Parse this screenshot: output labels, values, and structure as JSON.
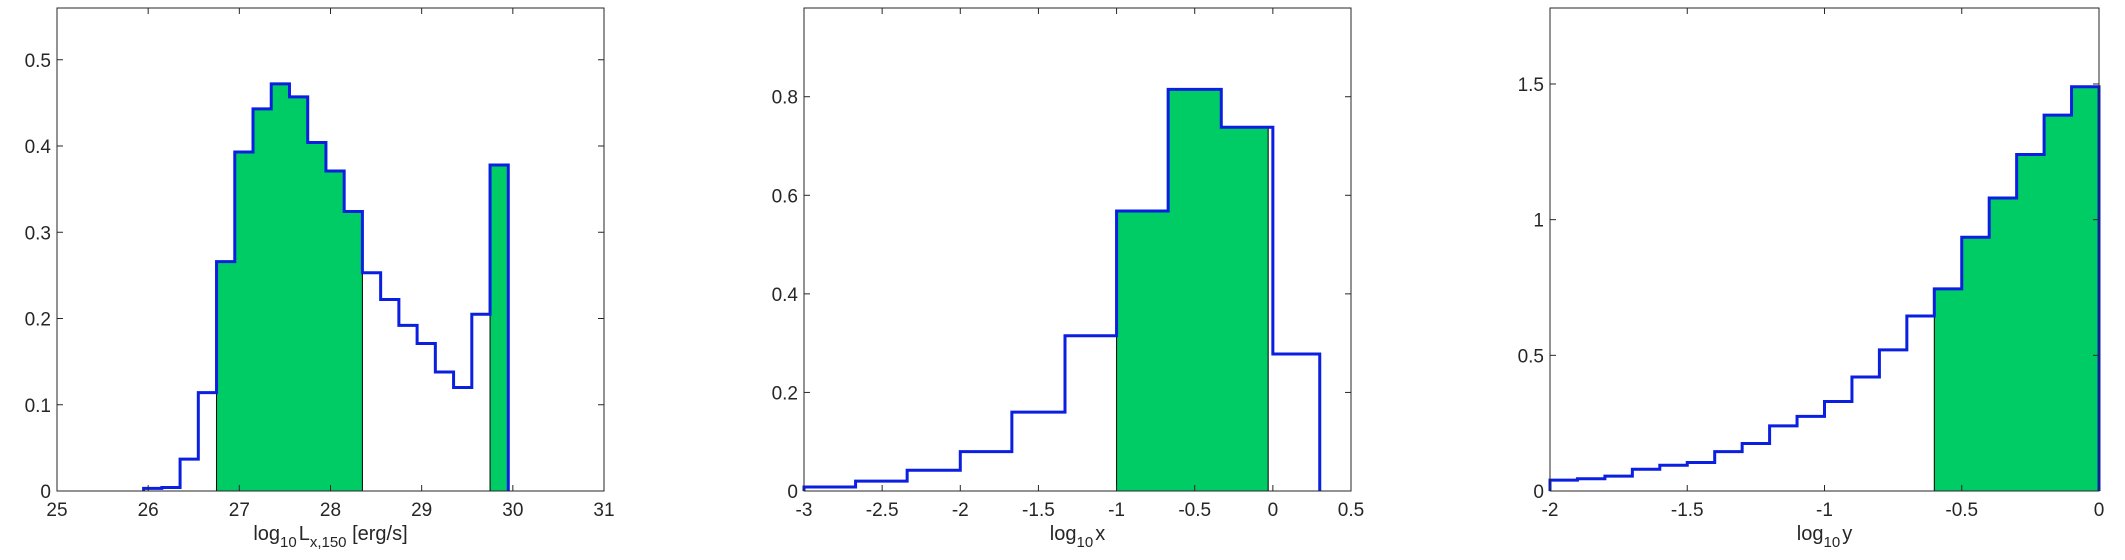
{
  "chart_data": [
    {
      "type": "histogram",
      "title": "",
      "xlabel": {
        "base": "log",
        "sub": "10",
        "main": "L",
        "main_sub": "x,150",
        "unit": " [erg/s]"
      },
      "ylabel": "",
      "xlim": [
        25,
        31
      ],
      "ylim": [
        0,
        0.56
      ],
      "xticks": [
        "25",
        "26",
        "27",
        "28",
        "29",
        "30",
        "31"
      ],
      "yticks": [
        "0",
        "0.1",
        "0.2",
        "0.3",
        "0.4",
        "0.5"
      ],
      "bin_edges": [
        25.95,
        26.15,
        26.35,
        26.55,
        26.75,
        26.95,
        27.15,
        27.35,
        27.55,
        27.75,
        27.95,
        28.15,
        28.35,
        28.55,
        28.75,
        28.95,
        29.15,
        29.35,
        29.55,
        29.75,
        29.95
      ],
      "values": [
        0.003,
        0.004,
        0.037,
        0.114,
        0.266,
        0.393,
        0.443,
        0.472,
        0.457,
        0.404,
        0.371,
        0.324,
        0.253,
        0.222,
        0.192,
        0.171,
        0.138,
        0.12,
        0.205,
        0.378
      ],
      "filled_ranges": [
        [
          26.75,
          28.35
        ],
        [
          29.75,
          29.95
        ]
      ],
      "colors": {
        "outline": "#0a1fe0",
        "fill": "#00cc66"
      }
    },
    {
      "type": "histogram",
      "title": "",
      "xlabel": {
        "base": "log",
        "sub": "10",
        "main": "x",
        "main_sub": "",
        "unit": ""
      },
      "ylabel": "",
      "xlim": [
        -3,
        0.5
      ],
      "ylim": [
        0,
        0.98
      ],
      "xticks": [
        "-3",
        "-2.5",
        "-2",
        "-1.5",
        "-1",
        "-0.5",
        "0",
        "0.5"
      ],
      "yticks": [
        "0",
        "0.2",
        "0.4",
        "0.6",
        "0.8"
      ],
      "bin_edges": [
        -3.0,
        -2.67,
        -2.34,
        -2.0,
        -1.67,
        -1.33,
        -1.0,
        -0.67,
        -0.33,
        0.0,
        0.3
      ],
      "values": [
        0.008,
        0.02,
        0.042,
        0.08,
        0.16,
        0.315,
        0.568,
        0.815,
        0.738,
        0.278
      ],
      "filled_ranges": [
        [
          -1.0,
          -0.03
        ]
      ],
      "colors": {
        "outline": "#0a1fe0",
        "fill": "#00cc66"
      }
    },
    {
      "type": "histogram",
      "title": "",
      "xlabel": {
        "base": "log",
        "sub": "10",
        "main": "y",
        "main_sub": "",
        "unit": ""
      },
      "ylabel": "",
      "xlim": [
        -2,
        0
      ],
      "ylim": [
        0,
        1.78
      ],
      "xticks": [
        "-2",
        "-1.5",
        "-1",
        "-0.5",
        "0"
      ],
      "yticks": [
        "0",
        "0.5",
        "1",
        "1.5"
      ],
      "bin_edges": [
        -2.0,
        -1.9,
        -1.8,
        -1.7,
        -1.6,
        -1.5,
        -1.4,
        -1.3,
        -1.2,
        -1.1,
        -1.0,
        -0.9,
        -0.8,
        -0.7,
        -0.6,
        -0.5,
        -0.4,
        -0.3,
        -0.2,
        -0.1,
        0.0
      ],
      "values": [
        0.04,
        0.045,
        0.055,
        0.08,
        0.095,
        0.105,
        0.145,
        0.175,
        0.24,
        0.275,
        0.33,
        0.42,
        0.52,
        0.645,
        0.745,
        0.935,
        1.08,
        1.24,
        1.385,
        1.49
      ],
      "filled_ranges": [
        [
          -0.6,
          0.0
        ]
      ],
      "colors": {
        "outline": "#0a1fe0",
        "fill": "#00cc66"
      }
    }
  ]
}
